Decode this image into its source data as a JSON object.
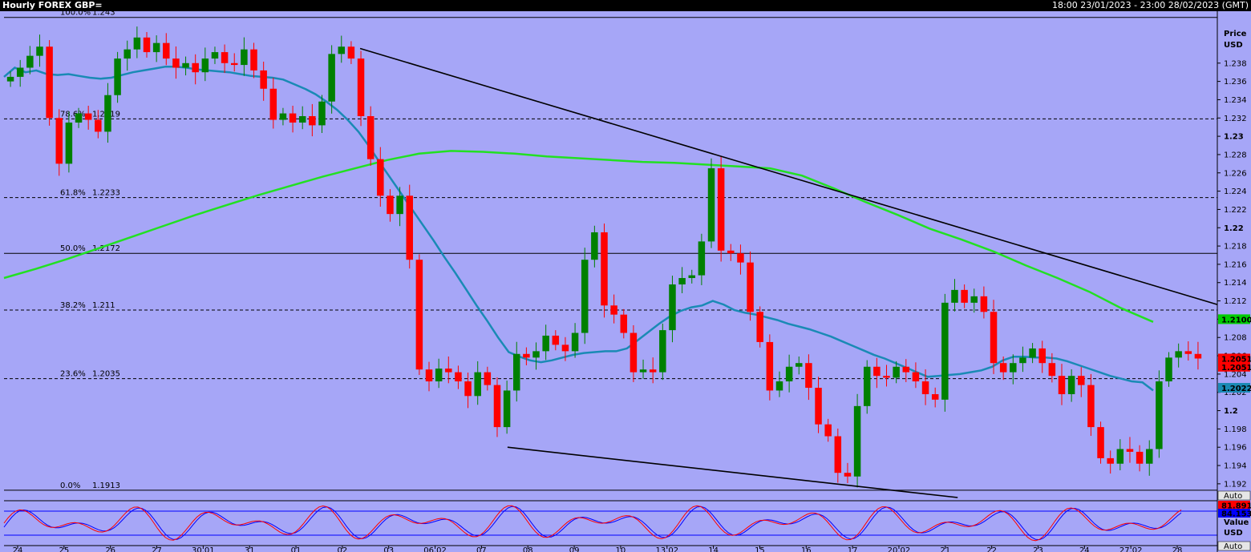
{
  "header": {
    "title": "Hourly FOREX GBP=",
    "range": "18:00 23/01/2023 - 23:00 28/02/2023 (GMT)"
  },
  "axis": {
    "title": "Price",
    "unit": "USD",
    "auto_label": "Auto"
  },
  "chart_data": {
    "type": "candlestick",
    "ylim": [
      1.1905,
      1.2435
    ],
    "y_ticks": [
      1.192,
      1.194,
      1.196,
      1.198,
      1.2,
      1.202,
      1.204,
      1.206,
      1.208,
      1.21,
      1.212,
      1.214,
      1.216,
      1.218,
      1.22,
      1.222,
      1.224,
      1.226,
      1.228,
      1.23,
      1.232,
      1.234,
      1.236,
      1.238
    ],
    "y_tick_labels": [
      "1.192",
      "1.194",
      "1.196",
      "1.198",
      "1.2",
      "1.202",
      "1.204",
      "1.206",
      "1.208",
      "1.21",
      "1.212",
      "1.214",
      "1.216",
      "1.218",
      "1.22",
      "1.222",
      "1.224",
      "1.226",
      "1.228",
      "1.23",
      "1.232",
      "1.234",
      "1.236",
      "1.238"
    ],
    "x_labels": [
      "24",
      "25",
      "26",
      "27",
      "30.01",
      "31",
      "01",
      "02",
      "03",
      "06.02",
      "07",
      "08",
      "09",
      "10",
      "13.02",
      "14",
      "15",
      "16",
      "17",
      "20.02",
      "21",
      "22",
      "23",
      "24",
      "27.02",
      "28"
    ],
    "fibonacci": [
      {
        "pct": "100.0%",
        "value": "1.243",
        "price": 1.243,
        "dashed": false
      },
      {
        "pct": "78.6%",
        "value": "1.2319",
        "price": 1.2319,
        "dashed": true
      },
      {
        "pct": "61.8%",
        "value": "1.2233",
        "price": 1.2233,
        "dashed": true
      },
      {
        "pct": "50.0%",
        "value": "1.2172",
        "price": 1.2172,
        "dashed": false
      },
      {
        "pct": "38.2%",
        "value": "1.211",
        "price": 1.211,
        "dashed": true
      },
      {
        "pct": "23.6%",
        "value": "1.2035",
        "price": 1.2035,
        "dashed": true
      },
      {
        "pct": "0.0%",
        "value": "1.1913",
        "price": 1.1913,
        "dashed": false
      }
    ],
    "closes": [
      1.2365,
      1.2375,
      1.2388,
      1.2398,
      1.232,
      1.227,
      1.2315,
      1.2325,
      1.2318,
      1.2305,
      1.2345,
      1.2385,
      1.2395,
      1.2408,
      1.2392,
      1.2402,
      1.2385,
      1.2375,
      1.238,
      1.237,
      1.2385,
      1.2392,
      1.238,
      1.2378,
      1.2395,
      1.2372,
      1.2352,
      1.2318,
      1.2325,
      1.2315,
      1.2322,
      1.2312,
      1.2338,
      1.239,
      1.2398,
      1.2385,
      1.2322,
      1.2275,
      1.2235,
      1.2215,
      1.2235,
      1.2165,
      1.2045,
      1.2032,
      1.2046,
      1.2042,
      1.2032,
      1.2016,
      1.2042,
      1.2028,
      1.1982,
      1.2022,
      1.2062,
      1.2058,
      1.2065,
      1.2082,
      1.2072,
      1.2065,
      1.2085,
      1.2165,
      1.2195,
      1.2115,
      1.2105,
      1.2085,
      1.2042,
      1.2045,
      1.2042,
      1.2088,
      1.2138,
      1.2145,
      1.2148,
      1.2185,
      1.2265,
      1.2175,
      1.2172,
      1.2162,
      1.2108,
      1.2075,
      1.2022,
      1.2032,
      1.2048,
      1.2052,
      1.2025,
      1.1985,
      1.1972,
      1.1932,
      1.1928,
      1.2005,
      1.2048,
      1.2038,
      1.2036,
      1.2048,
      1.2042,
      1.2032,
      1.2018,
      1.2012,
      1.2118,
      1.2132,
      1.2118,
      1.2125,
      1.2108,
      1.2052,
      1.2042,
      1.2052,
      1.2058,
      1.2068,
      1.2052,
      1.2038,
      1.2018,
      1.2038,
      1.2028,
      1.1982,
      1.1948,
      1.1942,
      1.1958,
      1.1955,
      1.1942,
      1.1958,
      1.2032,
      1.2058,
      1.2065,
      1.2062,
      1.2057
    ],
    "ma_fast": [
      1.2365,
      1.2375,
      1.237,
      1.2372,
      1.2368,
      1.2367,
      1.2368,
      1.2366,
      1.2364,
      1.2363,
      1.2364,
      1.2367,
      1.237,
      1.2372,
      1.2374,
      1.2376,
      1.2376,
      1.2375,
      1.2373,
      1.2372,
      1.2371,
      1.237,
      1.2368,
      1.2366,
      1.2365,
      1.2364,
      1.2362,
      1.2357,
      1.2352,
      1.2346,
      1.2338,
      1.2329,
      1.2318,
      1.2305,
      1.2289,
      1.2271,
      1.2254,
      1.2237,
      1.222,
      1.2203,
      1.2186,
      1.2168,
      1.2151,
      1.2133,
      1.2115,
      1.2098,
      1.208,
      1.2064,
      1.2059,
      1.2055,
      1.2053,
      1.2055,
      1.2058,
      1.2061,
      1.2063,
      1.2064,
      1.2065,
      1.2065,
      1.2068,
      1.2077,
      1.2086,
      1.2095,
      1.2103,
      1.2109,
      1.2113,
      1.2115,
      1.212,
      1.2116,
      1.211,
      1.2107,
      1.2105,
      1.2102,
      1.2099,
      1.2095,
      1.2092,
      1.2089,
      1.2085,
      1.2081,
      1.2076,
      1.2071,
      1.2066,
      1.2061,
      1.2057,
      1.2052,
      1.2047,
      1.2042,
      1.2037,
      1.2038,
      1.2039,
      1.204,
      1.2042,
      1.2044,
      1.2048,
      1.2055,
      1.2059,
      1.2059,
      1.2058,
      1.2058,
      1.2057,
      1.2054,
      1.205,
      1.2046,
      1.2042,
      1.2038,
      1.2035,
      1.2032,
      1.2031,
      1.2022
    ],
    "ma_slow": [
      1.2145,
      1.2155,
      1.2166,
      1.2178,
      1.219,
      1.2202,
      1.2214,
      1.2225,
      1.2236,
      1.2246,
      1.2256,
      1.2265,
      1.2274,
      1.2281,
      1.2284,
      1.2283,
      1.2281,
      1.2278,
      1.2276,
      1.2274,
      1.2272,
      1.2271,
      1.2269,
      1.2267,
      1.2265,
      1.2257,
      1.2243,
      1.2228,
      1.2214,
      1.2199,
      1.2187,
      1.2174,
      1.2159,
      1.2145,
      1.213,
      1.2112,
      1.2097
    ],
    "trend_upper": {
      "x": [
        0.2935,
        1.0
      ],
      "y": [
        1.2396,
        1.2116
      ]
    },
    "trend_lower": {
      "x": [
        0.415,
        0.786
      ],
      "y": [
        1.196,
        1.1905
      ]
    },
    "tags": [
      {
        "label": "1.2100",
        "price": 1.21,
        "bg": "#00cc00",
        "fg": "#000000"
      },
      {
        "label": "1.2051",
        "price": 1.2057,
        "bg": "#ff0000",
        "fg": "#000000"
      },
      {
        "label": "1.2051",
        "price": 1.2048,
        "bg": "#ff0000",
        "fg": "#000000"
      },
      {
        "label": "1.2022",
        "price": 1.2025,
        "bg": "#1a8ab5",
        "fg": "#ffffff"
      }
    ]
  },
  "oscillator": {
    "axis_title": "Value",
    "axis_unit": "USD",
    "auto_label": "Auto",
    "upper_level": 80,
    "lower_level": 20,
    "value_k": "81.891",
    "value_d": "84.153"
  },
  "colors": {
    "background": "#a6a6f7",
    "up_candle": "#008000",
    "down_candle": "#ff0000",
    "ma_fast": "#1a8ab5",
    "ma_slow": "#22e022",
    "trendline": "#000000",
    "osc_k": "#ff0000",
    "osc_d": "#0000ff"
  }
}
